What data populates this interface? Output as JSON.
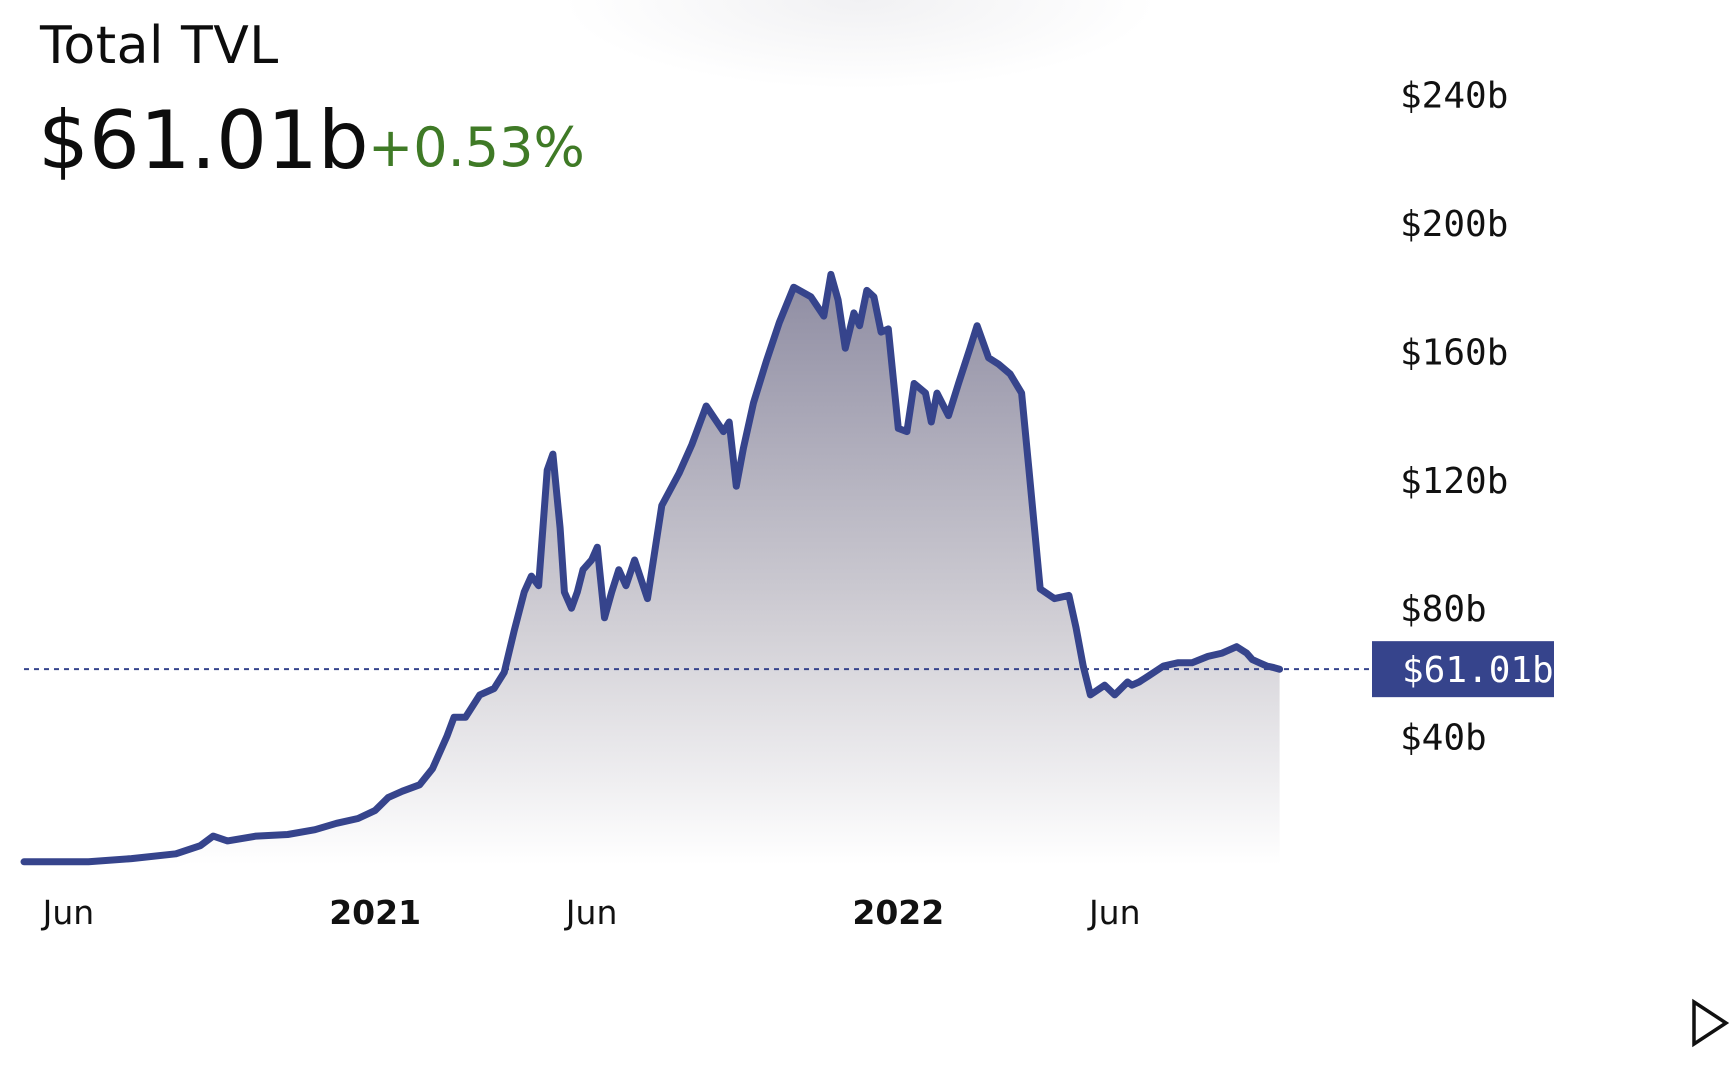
{
  "header": {
    "title": "Total TVL",
    "value": "$61.01b",
    "change": "+0.53%"
  },
  "colors": {
    "line": "#36448c",
    "change_positive": "#3f7a26",
    "current_label_bg": "#36448c",
    "fill_top": "#8e8ca2",
    "fill_bottom": "#ffffff"
  },
  "icons": {
    "play": "play-icon"
  },
  "chart_data": {
    "type": "area",
    "title": "Total TVL",
    "xlabel": "",
    "ylabel": "",
    "x_tick_labels": [
      "Jun",
      "2021",
      "Jun",
      "2022",
      "Jun"
    ],
    "x_tick_dates": [
      "2020-06-01",
      "2021-01-01",
      "2021-06-01",
      "2022-01-01",
      "2022-06-01"
    ],
    "bold_ticks": [
      "2021",
      "2022"
    ],
    "y_tick_values": [
      40,
      80,
      120,
      160,
      200,
      240
    ],
    "y_tick_labels": [
      "$40b",
      "$80b",
      "$120b",
      "$160b",
      "$200b",
      "$240b"
    ],
    "ylim": [
      0,
      252
    ],
    "xlim": [
      "2020-05-01",
      "2022-11-24"
    ],
    "unit": "billion USD",
    "current_value": 61.01,
    "current_label": "$61.01b",
    "grid": false,
    "y_axis_position": "right",
    "series": [
      {
        "x": [
          "2020-05-01",
          "2020-06-15",
          "2020-07-15",
          "2020-08-15",
          "2020-09-01",
          "2020-09-10",
          "2020-09-20",
          "2020-10-10",
          "2020-11-01",
          "2020-11-20",
          "2020-12-05",
          "2020-12-20",
          "2021-01-01",
          "2021-01-10",
          "2021-01-20",
          "2021-02-01",
          "2021-02-10",
          "2021-02-20",
          "2021-02-25",
          "2021-03-05",
          "2021-03-15",
          "2021-03-25",
          "2021-04-01",
          "2021-04-08",
          "2021-04-15",
          "2021-04-20",
          "2021-04-25",
          "2021-05-01",
          "2021-05-05",
          "2021-05-10",
          "2021-05-13",
          "2021-05-18",
          "2021-05-22",
          "2021-05-26",
          "2021-06-01",
          "2021-06-05",
          "2021-06-10",
          "2021-06-15",
          "2021-06-20",
          "2021-06-25",
          "2021-07-01",
          "2021-07-10",
          "2021-07-20",
          "2021-08-01",
          "2021-08-10",
          "2021-08-20",
          "2021-09-01",
          "2021-09-05",
          "2021-09-10",
          "2021-09-15",
          "2021-09-22",
          "2021-10-01",
          "2021-10-10",
          "2021-10-20",
          "2021-11-01",
          "2021-11-10",
          "2021-11-15",
          "2021-11-20",
          "2021-11-25",
          "2021-12-01",
          "2021-12-05",
          "2021-12-10",
          "2021-12-15",
          "2021-12-20",
          "2021-12-25",
          "2022-01-01",
          "2022-01-07",
          "2022-01-12",
          "2022-01-20",
          "2022-01-24",
          "2022-01-28",
          "2022-02-05",
          "2022-02-12",
          "2022-02-20",
          "2022-02-25",
          "2022-03-05",
          "2022-03-12",
          "2022-03-20",
          "2022-03-28",
          "2022-04-02",
          "2022-04-10",
          "2022-04-20",
          "2022-04-30",
          "2022-05-05",
          "2022-05-10",
          "2022-05-15",
          "2022-05-25",
          "2022-06-01",
          "2022-06-10",
          "2022-06-13",
          "2022-06-18",
          "2022-06-25",
          "2022-07-05",
          "2022-07-15",
          "2022-07-25",
          "2022-08-05",
          "2022-08-15",
          "2022-08-25",
          "2022-09-01",
          "2022-09-05",
          "2022-09-10",
          "2022-09-15",
          "2022-09-20",
          "2022-09-24"
        ],
        "values": [
          1,
          1,
          2,
          3.5,
          6,
          9,
          7.5,
          9,
          9.5,
          11,
          13,
          14.5,
          17,
          21,
          23,
          25,
          30,
          40,
          46,
          46,
          53,
          55,
          60,
          73,
          85,
          90,
          87,
          123,
          128,
          105,
          85,
          80,
          85,
          92,
          95,
          99,
          77,
          85,
          92,
          87,
          95,
          83,
          112,
          122,
          131,
          143,
          135,
          138,
          118,
          130,
          144,
          157,
          169,
          180,
          177,
          171,
          184,
          176,
          161,
          172,
          168,
          179,
          177,
          166,
          167,
          136,
          135,
          150,
          147,
          138,
          147,
          140,
          150,
          161,
          168,
          158,
          156,
          153,
          147,
          124,
          86,
          83,
          84,
          74,
          62,
          53,
          56,
          53,
          57,
          56,
          57,
          59,
          62,
          63,
          63,
          65,
          66,
          68,
          66,
          64,
          63,
          62,
          61.5,
          61.01
        ]
      }
    ]
  }
}
